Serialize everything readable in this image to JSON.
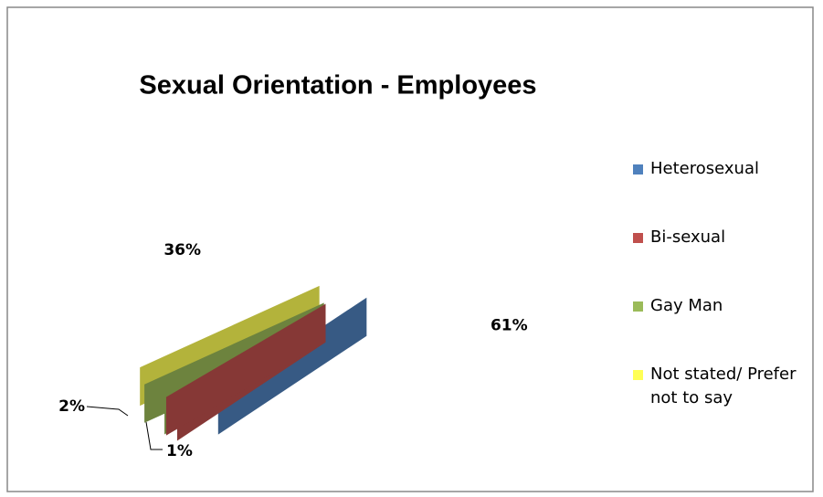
{
  "chart_data": {
    "type": "pie",
    "title": "Sexual Orientation - Employees",
    "categories": [
      "Heterosexual",
      "Bi-sexual",
      "Gay Man",
      "Not stated/ Prefer not to say"
    ],
    "values": [
      61,
      1,
      2,
      36
    ],
    "value_labels": [
      "61%",
      "1%",
      "2%",
      "36%"
    ],
    "colors": [
      "#4f81bd",
      "#c0504d",
      "#9bbb59",
      "#ffff55"
    ],
    "legend": "right"
  }
}
